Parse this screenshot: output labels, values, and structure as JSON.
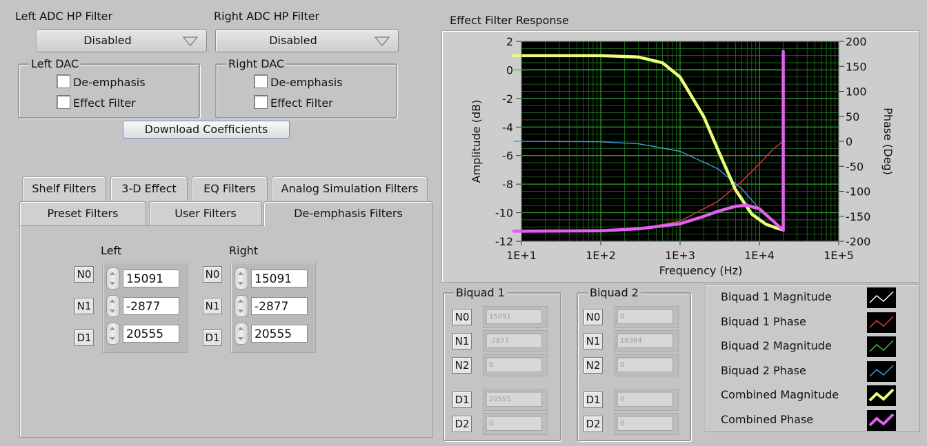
{
  "left_adc": {
    "label": "Left ADC HP Filter",
    "value": "Disabled"
  },
  "right_adc": {
    "label": "Right ADC HP Filter",
    "value": "Disabled"
  },
  "left_dac": {
    "title": "Left DAC",
    "deemphasis": "De-emphasis",
    "effect": "Effect Filter"
  },
  "right_dac": {
    "title": "Right DAC",
    "deemphasis": "De-emphasis",
    "effect": "Effect Filter"
  },
  "download_button": "Download Coefficients",
  "tabs_row1": [
    "Shelf Filters",
    "3-D Effect",
    "EQ Filters",
    "Analog Simulation Filters"
  ],
  "tabs_row2": [
    "Preset Filters",
    "User Filters",
    "De-emphasis Filters"
  ],
  "coeffs": {
    "left_title": "Left",
    "right_title": "Right",
    "tags": [
      "N0",
      "N1",
      "D1"
    ],
    "left_values": [
      "15091",
      "-2877",
      "20555"
    ],
    "right_values": [
      "15091",
      "-2877",
      "20555"
    ]
  },
  "biquad1": {
    "title": "Biquad 1",
    "tags": [
      "N0",
      "N1",
      "N2",
      "D1",
      "D2"
    ],
    "values": [
      "15091",
      "-2877",
      "0",
      "20555",
      "0"
    ]
  },
  "biquad2": {
    "title": "Biquad 2",
    "tags": [
      "N0",
      "N1",
      "N2",
      "D1",
      "D2"
    ],
    "values": [
      "0",
      "16384",
      "0",
      "0",
      "0"
    ]
  },
  "legend": [
    {
      "name": "Biquad 1 Magnitude",
      "color": "#ffffff",
      "thick": false
    },
    {
      "name": "Biquad 1 Phase",
      "color": "#e03c3c",
      "thick": false
    },
    {
      "name": "Biquad 2 Magnitude",
      "color": "#3cc83c",
      "thick": false
    },
    {
      "name": "Biquad 2 Phase",
      "color": "#3fa0d8",
      "thick": false
    },
    {
      "name": "Combined Magnitude",
      "color": "#eaff78",
      "thick": true
    },
    {
      "name": "Combined Phase",
      "color": "#e060f0",
      "thick": true
    }
  ],
  "chart_data": {
    "type": "line",
    "title": "Effect Filter Response",
    "xlabel": "Frequency (Hz)",
    "ylabel": "Amplitude (dB)",
    "y2label": "Phase (Deg)",
    "x_scale": "log",
    "xlim": [
      10,
      100000
    ],
    "ylim": [
      -12,
      2
    ],
    "y2lim": [
      -200,
      200
    ],
    "x_ticks": [
      "1E+1",
      "1E+2",
      "1E+3",
      "1E+4",
      "1E+5"
    ],
    "y_ticks": [
      "2",
      "0",
      "-2",
      "-4",
      "-6",
      "-8",
      "-10",
      "-12"
    ],
    "y2_ticks": [
      "200",
      "150",
      "100",
      "50",
      "0",
      "-50",
      "-100",
      "-150",
      "-200"
    ],
    "grid": true,
    "background": "#000000",
    "grid_color": "#1f7a1f",
    "series": [
      {
        "name": "Biquad 1 Magnitude",
        "axis": "left",
        "color": "#ffffff",
        "x": [],
        "y": []
      },
      {
        "name": "Biquad 2 Magnitude",
        "axis": "left",
        "color": "#3cc83c",
        "x": [
          8,
          20000
        ],
        "y": [
          0,
          0
        ]
      },
      {
        "name": "Biquad 2 Phase",
        "axis": "right",
        "color": "#3fa0d8",
        "x": [
          8,
          100,
          300,
          1000,
          3000,
          6000,
          10000,
          15000,
          20000
        ],
        "y": [
          0,
          -1,
          -5,
          -20,
          -55,
          -95,
          -135,
          -160,
          -180
        ]
      },
      {
        "name": "Biquad 1 Phase",
        "axis": "right",
        "color": "#e03c3c",
        "x": [
          8,
          100,
          300,
          1000,
          3000,
          6000,
          10000,
          15000,
          20000
        ],
        "y": [
          -180,
          -179,
          -175,
          -160,
          -120,
          -80,
          -45,
          -15,
          0
        ]
      },
      {
        "name": "Combined Magnitude",
        "axis": "left",
        "color": "#eaff78",
        "x": [
          8,
          100,
          300,
          600,
          1000,
          2000,
          3000,
          5000,
          8000,
          12000,
          17000,
          20000
        ],
        "y": [
          1.0,
          1.0,
          0.9,
          0.5,
          -0.5,
          -3.3,
          -5.6,
          -8.4,
          -10.1,
          -10.8,
          -11.1,
          -11.2
        ]
      },
      {
        "name": "Combined Phase",
        "axis": "right",
        "color": "#e060f0",
        "x": [
          8,
          100,
          300,
          1000,
          2000,
          3000,
          5000,
          7000,
          10000,
          15000,
          20000,
          20000,
          20000
        ],
        "y": [
          -180,
          -179,
          -175,
          -165,
          -150,
          -140,
          -130,
          -128,
          -135,
          -160,
          -178,
          0,
          180
        ]
      }
    ]
  }
}
